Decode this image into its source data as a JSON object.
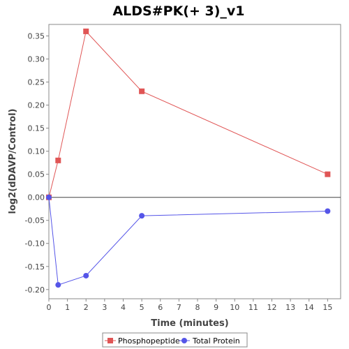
{
  "chart_data": {
    "type": "line",
    "title": "ALDS#PK(+ 3)_v1",
    "xlabel": "Time (minutes)",
    "ylabel": "log2(dDAVP/Control)",
    "xlim": [
      0,
      15.7
    ],
    "ylim": [
      -0.22,
      0.375
    ],
    "xticks": [
      0,
      1,
      2,
      3,
      4,
      5,
      6,
      7,
      8,
      9,
      10,
      11,
      12,
      13,
      14,
      15
    ],
    "yticks": [
      -0.2,
      -0.15,
      -0.1,
      -0.05,
      0.0,
      0.05,
      0.1,
      0.15,
      0.2,
      0.25,
      0.3,
      0.35
    ],
    "grid": false,
    "legend_position": "bottom",
    "series": [
      {
        "name": "Phosphopeptide",
        "color": "#e05555",
        "marker": "square",
        "x": [
          0,
          0.5,
          2,
          5,
          15
        ],
        "y": [
          0.0,
          0.08,
          0.36,
          0.23,
          0.05
        ]
      },
      {
        "name": "Total Protein",
        "color": "#5555e8",
        "marker": "circle",
        "x": [
          0,
          0.5,
          2,
          5,
          15
        ],
        "y": [
          0.0,
          -0.19,
          -0.17,
          -0.04,
          -0.03
        ]
      }
    ]
  }
}
